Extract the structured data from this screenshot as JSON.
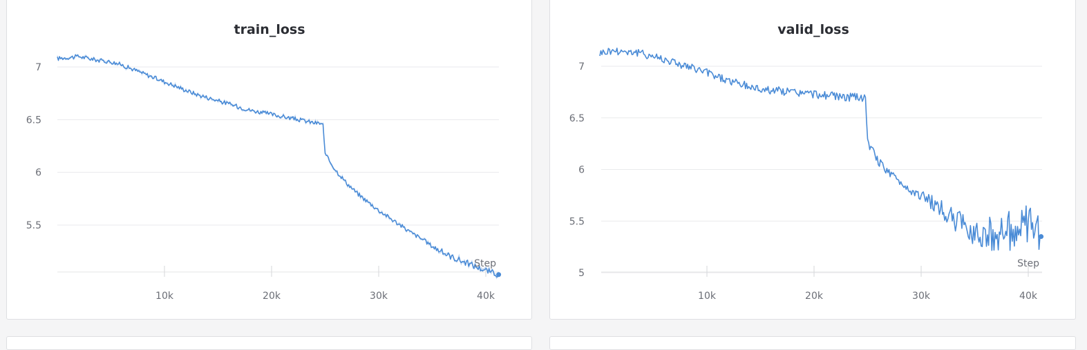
{
  "chart_data": [
    {
      "type": "line",
      "title": "train_loss",
      "xlabel": "Step",
      "ylabel": "",
      "xlim": [
        0,
        41300
      ],
      "ylim": [
        5.0,
        7.2
      ],
      "xticks": [
        10000,
        20000,
        30000,
        40000
      ],
      "xtick_labels": [
        "10k",
        "20k",
        "30k",
        "40k"
      ],
      "yticks": [
        5.5,
        6.0,
        6.5,
        7.0
      ],
      "ytick_labels": [
        "5.5",
        "6",
        "6.5",
        "7"
      ],
      "grid": true,
      "color": "#4a8bd6",
      "series": [
        {
          "x": [
            0,
            1000,
            2000,
            3000,
            4000,
            5000,
            6000,
            7000,
            8000,
            9000,
            10000,
            11000,
            12000,
            13000,
            14000,
            15000,
            16000,
            17000,
            18000,
            19000,
            20000,
            21000,
            22000,
            23000,
            24000,
            24800,
            25000,
            26000,
            27000,
            28000,
            29000,
            30000,
            31000,
            32000,
            33000,
            34000,
            35000,
            36000,
            37000,
            38000,
            39000,
            40000,
            41200
          ],
          "y": [
            7.08,
            7.09,
            7.1,
            7.08,
            7.06,
            7.05,
            7.02,
            6.98,
            6.94,
            6.9,
            6.86,
            6.82,
            6.78,
            6.74,
            6.71,
            6.68,
            6.65,
            6.62,
            6.59,
            6.57,
            6.55,
            6.53,
            6.51,
            6.49,
            6.47,
            6.46,
            6.17,
            6.02,
            5.9,
            5.8,
            5.72,
            5.64,
            5.57,
            5.5,
            5.43,
            5.37,
            5.3,
            5.24,
            5.19,
            5.15,
            5.11,
            5.07,
            5.03
          ],
          "noise": 0.02
        }
      ]
    },
    {
      "type": "line",
      "title": "valid_loss",
      "xlabel": "Step",
      "ylabel": "",
      "xlim": [
        0,
        41300
      ],
      "ylim": [
        4.98,
        7.2
      ],
      "xticks": [
        10000,
        20000,
        30000,
        40000
      ],
      "xtick_labels": [
        "10k",
        "20k",
        "30k",
        "40k"
      ],
      "yticks": [
        5.0,
        5.5,
        6.0,
        6.5,
        7.0
      ],
      "ytick_labels": [
        "5",
        "5.5",
        "6",
        "6.5",
        "7"
      ],
      "grid": true,
      "color": "#4a8bd6",
      "series": [
        {
          "x": [
            0,
            1000,
            2000,
            3000,
            4000,
            5000,
            6000,
            7000,
            8000,
            9000,
            10000,
            11000,
            12000,
            13000,
            14000,
            15000,
            16000,
            17000,
            18000,
            19000,
            20000,
            21000,
            22000,
            23000,
            24000,
            24800,
            25000,
            26000,
            27000,
            28000,
            29000,
            30000,
            31000,
            32000,
            33000,
            34000,
            35000,
            36000,
            37000,
            38000,
            39000,
            40000,
            41200
          ],
          "y": [
            7.13,
            7.15,
            7.15,
            7.14,
            7.12,
            7.1,
            7.07,
            7.04,
            7.0,
            6.97,
            6.94,
            6.9,
            6.86,
            6.83,
            6.8,
            6.78,
            6.77,
            6.76,
            6.75,
            6.74,
            6.73,
            6.72,
            6.71,
            6.7,
            6.7,
            6.7,
            6.26,
            6.08,
            5.97,
            5.88,
            5.8,
            5.74,
            5.68,
            5.6,
            5.52,
            5.45,
            5.4,
            5.38,
            5.38,
            5.4,
            5.42,
            5.43,
            5.35
          ],
          "noise": 0.04
        }
      ]
    }
  ]
}
